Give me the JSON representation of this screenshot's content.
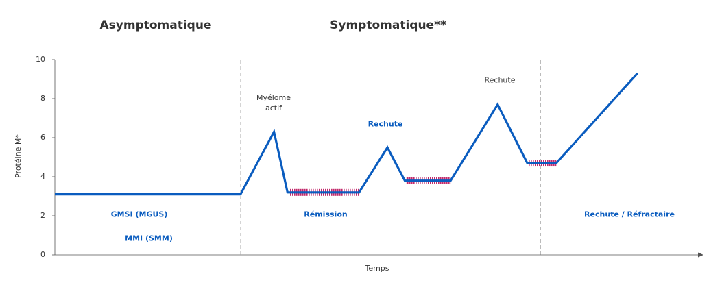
{
  "chart_data": {
    "type": "line",
    "phases": [
      "Asymptomatique",
      "Symptomatique**"
    ],
    "xlabel": "Temps",
    "ylabel": "Protéine M*",
    "x": [
      0,
      28.8,
      34.0,
      36.1,
      47.2,
      51.6,
      54.3,
      61.4,
      68.7,
      73.3,
      77.8,
      90.4
    ],
    "series": [
      {
        "color": "#0a5cbf",
        "values": [
          3.1,
          3.1,
          6.3,
          3.2,
          3.2,
          5.5,
          3.8,
          3.8,
          7.7,
          4.7,
          4.7,
          9.3
        ]
      }
    ],
    "treatment_color": "#c2286a",
    "xlim": [
      0,
      100
    ],
    "ylim": [
      0,
      10
    ],
    "yticks": [
      0,
      2,
      4,
      6,
      8,
      10
    ],
    "grid": false,
    "annotations": [
      {
        "text": "Myélome actif",
        "color": "#333333",
        "bold": false
      },
      {
        "text": "Rechute",
        "color": "#0a5cbf",
        "bold": true
      },
      {
        "text": "Rechute",
        "color": "#333333",
        "bold": false
      },
      {
        "text": "GMSI (MGUS)",
        "color": "#0a5cbf",
        "bold": true
      },
      {
        "text": "MMI (SMM)",
        "color": "#0a5cbf",
        "bold": true
      },
      {
        "text": "Rémission",
        "color": "#0a5cbf",
        "bold": true
      },
      {
        "text": "Rechute / Réfractaire",
        "color": "#0a5cbf",
        "bold": true
      }
    ]
  }
}
